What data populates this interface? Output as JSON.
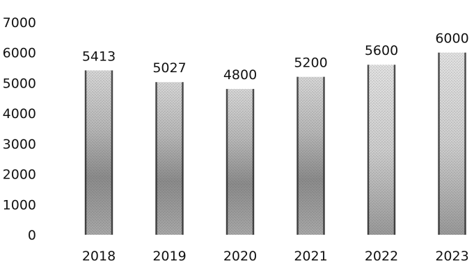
{
  "chart_data": {
    "type": "bar",
    "title": "",
    "xlabel": "",
    "ylabel": "",
    "categories": [
      "2018",
      "2019",
      "2020",
      "2021",
      "2022",
      "2023"
    ],
    "series": [
      {
        "values": [
          5413,
          5027,
          4800,
          5200,
          5600,
          6000
        ]
      }
    ],
    "data_labels": [
      "5413",
      "5027",
      "4800",
      "5200",
      "5600",
      "6000"
    ],
    "y_ticks": [
      0,
      1000,
      2000,
      3000,
      4000,
      5000,
      6000,
      7000
    ],
    "ylim": [
      0,
      7000
    ],
    "grid": false,
    "legend": "none",
    "colors": {
      "bar_edge": "#2a2a2a",
      "bar_light": "#c9c9c9",
      "bar_dark": "#6f6f6f",
      "text": "#111111"
    }
  }
}
